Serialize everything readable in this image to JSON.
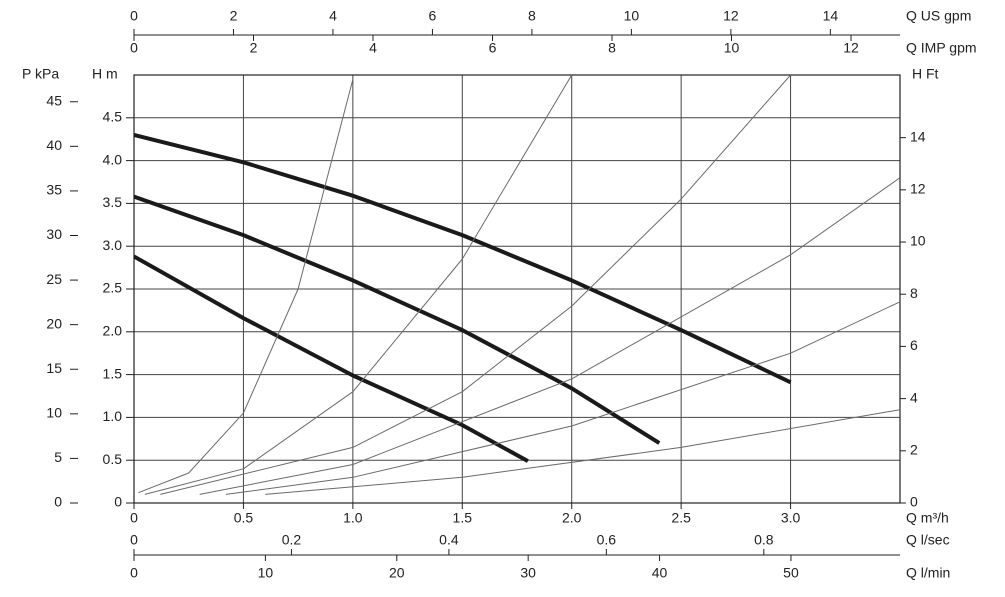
{
  "chart_data": {
    "type": "line",
    "xlabel": "Q m³/h",
    "ylabel": "H m",
    "xlim": [
      0,
      3.5
    ],
    "xticks": [
      0,
      0.5,
      {
        "value": 1,
        "label": "1.0"
      },
      1.5,
      {
        "value": 2,
        "label": "2.0"
      },
      2.5,
      {
        "value": 3,
        "label": "3.0"
      }
    ],
    "ylim": [
      0,
      5
    ],
    "yticks": [
      0,
      0.5,
      {
        "value": 1,
        "label": "1.0"
      },
      1.5,
      {
        "value": 2,
        "label": "2.0"
      },
      2.5,
      {
        "value": 3,
        "label": "3.0"
      },
      3.5,
      {
        "value": 4,
        "label": "4.0"
      },
      4.5
    ],
    "grid": true,
    "series": [
      {
        "color": "#1a1a1a",
        "line_width": 4,
        "x": [
          0,
          0.5,
          1.0,
          1.5,
          2.0,
          2.5,
          3.0
        ],
        "values": [
          4.3,
          3.98,
          3.59,
          3.13,
          2.6,
          2.02,
          1.41
        ]
      },
      {
        "color": "#1a1a1a",
        "line_width": 4,
        "x": [
          0,
          0.5,
          1.0,
          1.5,
          2.0,
          2.4
        ],
        "values": [
          3.58,
          3.13,
          2.6,
          2.02,
          1.34,
          0.7
        ]
      },
      {
        "color": "#1a1a1a",
        "line_width": 4,
        "x": [
          0,
          0.5,
          1.0,
          1.5,
          1.8
        ],
        "values": [
          2.88,
          2.16,
          1.49,
          0.91,
          0.49
        ]
      },
      {
        "color": "#6a6a6a",
        "line_width": 1,
        "x": [
          0.02,
          0.25,
          0.5,
          0.75,
          1.0
        ],
        "values": [
          0.12,
          0.35,
          1.05,
          2.5,
          4.95
        ]
      },
      {
        "color": "#6a6a6a",
        "line_width": 1,
        "x": [
          0.05,
          0.5,
          1.0,
          1.5,
          2.0
        ],
        "values": [
          0.1,
          0.4,
          1.3,
          2.85,
          5.0
        ]
      },
      {
        "color": "#6a6a6a",
        "line_width": 1,
        "x": [
          0.12,
          1.0,
          1.5,
          2.0,
          2.5,
          3.0
        ],
        "values": [
          0.1,
          0.65,
          1.3,
          2.3,
          3.55,
          5.0
        ]
      },
      {
        "color": "#6a6a6a",
        "line_width": 1,
        "x": [
          0.3,
          1.0,
          2.0,
          3.0,
          3.5
        ],
        "values": [
          0.1,
          0.45,
          1.45,
          2.9,
          3.8
        ]
      },
      {
        "color": "#6a6a6a",
        "line_width": 1,
        "x": [
          0.42,
          1.0,
          2.0,
          3.0,
          3.5
        ],
        "values": [
          0.1,
          0.3,
          0.9,
          1.75,
          2.35
        ]
      },
      {
        "color": "#6a6a6a",
        "line_width": 1,
        "x": [
          0.6,
          1.5,
          2.5,
          3.5
        ],
        "values": [
          0.1,
          0.3,
          0.65,
          1.09
        ]
      }
    ],
    "extra_axes": [
      {
        "label": "P kPa",
        "lim": [
          0,
          48
        ],
        "ticks": [
          0,
          5,
          10,
          15,
          20,
          25,
          30,
          35,
          40,
          45
        ]
      },
      {
        "label": "H Ft",
        "lim": [
          0,
          16.4
        ],
        "ticks": [
          0,
          2,
          4,
          6,
          8,
          10,
          12,
          14
        ]
      },
      {
        "label": "Q US gpm",
        "lim": [
          0,
          15.4
        ],
        "ticks": [
          0,
          2,
          4,
          6,
          8,
          10,
          12,
          14
        ]
      },
      {
        "label": "Q IMP gpm",
        "lim": [
          0,
          12.82
        ],
        "ticks": [
          0,
          2,
          4,
          6,
          8,
          10,
          12
        ]
      },
      {
        "label": "Q l/sec",
        "lim": [
          0,
          0.973
        ],
        "ticks": [
          0,
          0.2,
          0.4,
          0.6,
          0.8
        ]
      },
      {
        "label": "Q l/min",
        "lim": [
          0,
          58.3
        ],
        "ticks": [
          0,
          10,
          20,
          30,
          40,
          50
        ]
      }
    ]
  }
}
